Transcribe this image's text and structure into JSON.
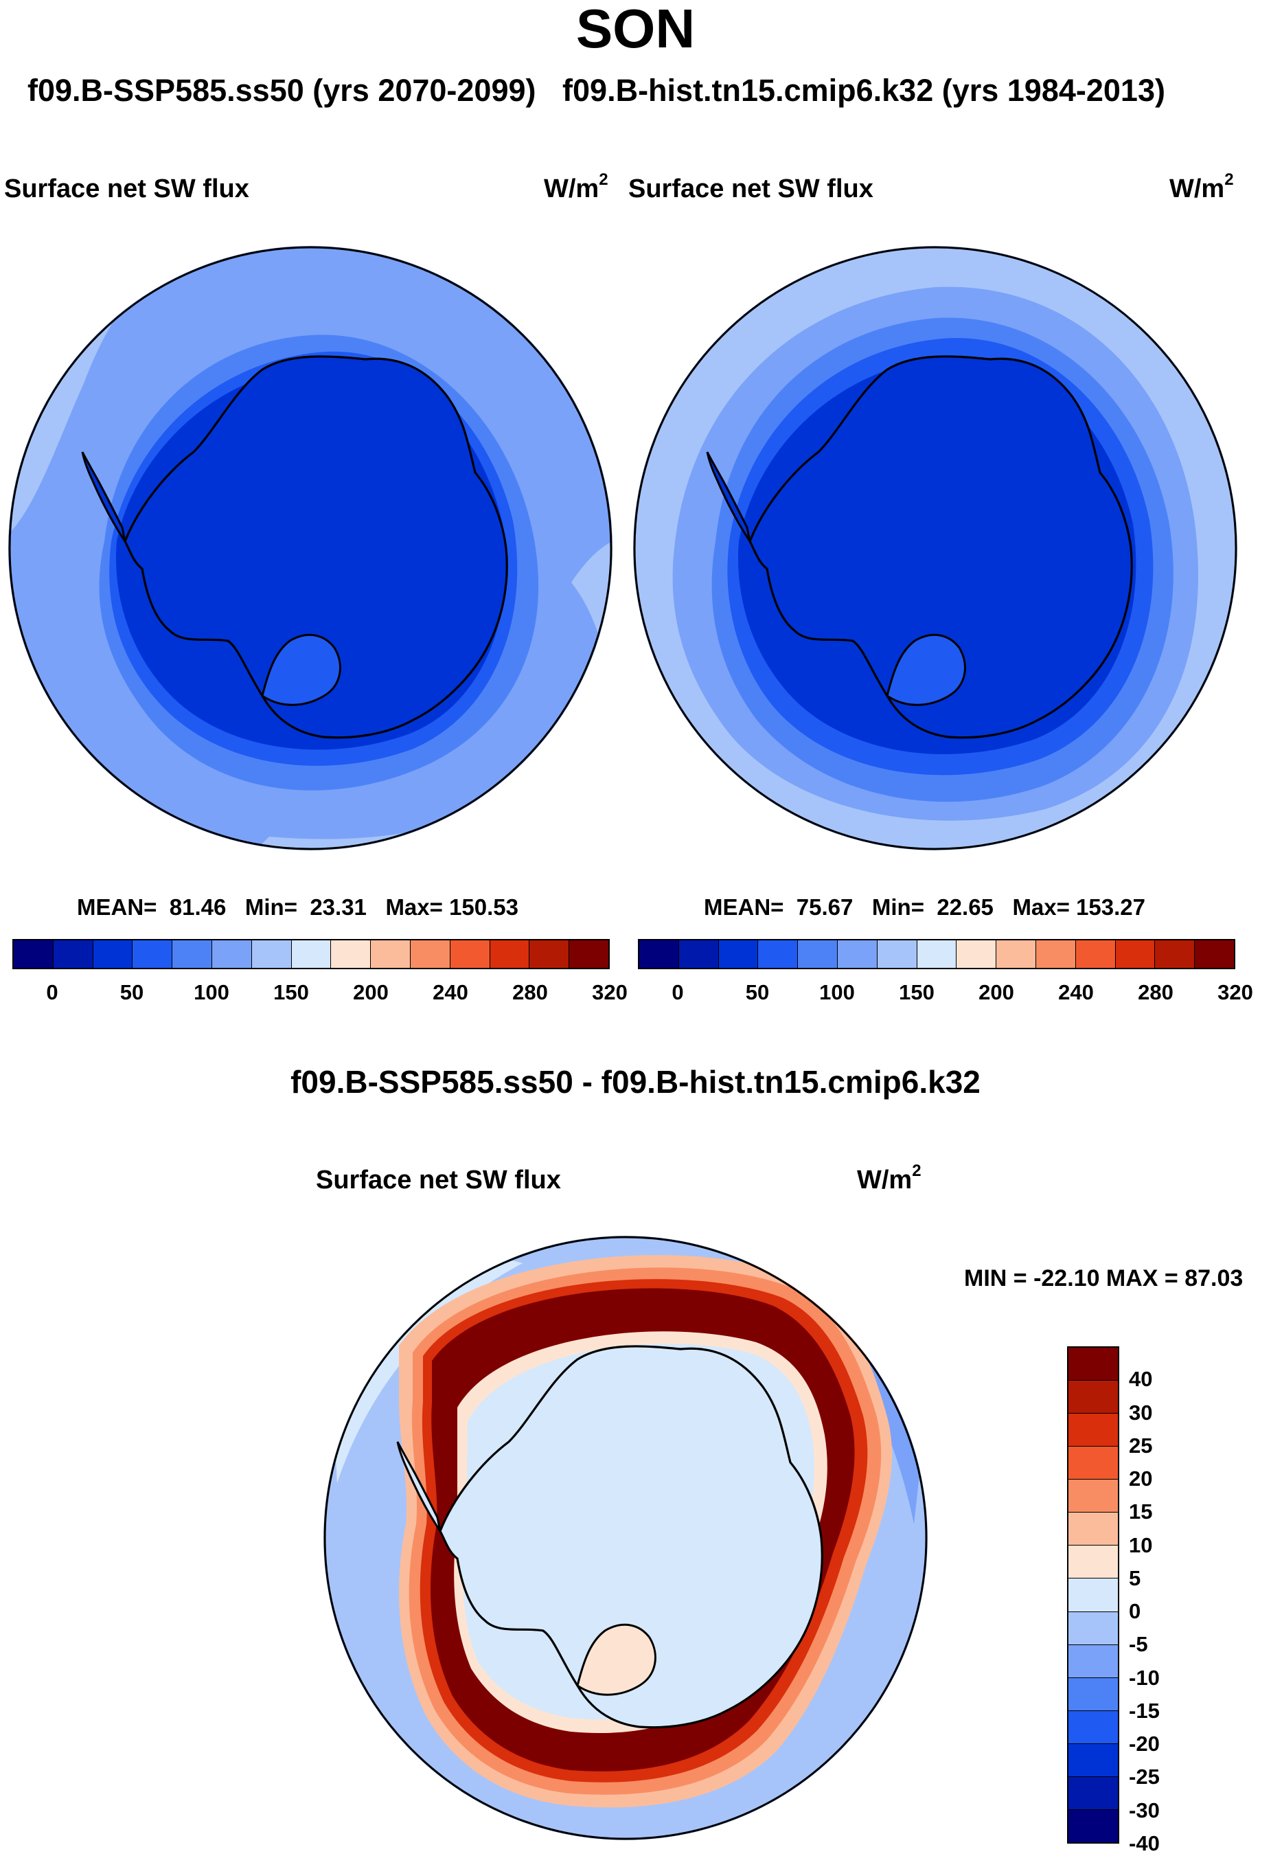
{
  "season": "SON",
  "subtitle": {
    "left": "f09.B-SSP585.ss50 (yrs 2070-2099)",
    "right": "f09.B-hist.tn15.cmip6.k32 (yrs 1984-2013)"
  },
  "panels": [
    {
      "variable": "Surface net SW flux",
      "units_base": "W/m",
      "units_exp": "2",
      "stats": {
        "mean": "81.46",
        "min": "23.31",
        "max": "150.53"
      }
    },
    {
      "variable": "Surface net SW flux",
      "units_base": "W/m",
      "units_exp": "2",
      "stats": {
        "mean": "75.67",
        "min": "22.65",
        "max": "153.27"
      }
    }
  ],
  "stat_labels": {
    "mean": "MEAN=",
    "min": "Min=",
    "max": "Max="
  },
  "abs_colorbar": {
    "colors": [
      "#00007d",
      "#0019ad",
      "#0033d6",
      "#1f5af2",
      "#4d82f7",
      "#7aa2f8",
      "#a6c4fa",
      "#d6e8fb",
      "#fde4d2",
      "#fbbc9c",
      "#f88d63",
      "#f2592e",
      "#d92f0c",
      "#b21a03",
      "#7d0000"
    ],
    "tick_labels": [
      "0",
      "50",
      "100",
      "150",
      "200",
      "240",
      "280",
      "320"
    ]
  },
  "difference": {
    "title": "f09.B-SSP585.ss50 - f09.B-hist.tn15.cmip6.k32",
    "variable": "Surface net SW flux",
    "units_base": "W/m",
    "units_exp": "2",
    "minmax_text": "MIN = -22.10 MAX =  87.03",
    "colorbar": {
      "colors_top_to_bottom": [
        "#7d0000",
        "#b21a03",
        "#d92f0c",
        "#f2592e",
        "#f88d63",
        "#fbbc9c",
        "#fde4d2",
        "#d6e8fb",
        "#a6c4fa",
        "#7aa2f8",
        "#4d82f7",
        "#1f5af2",
        "#0033d6",
        "#0019ad",
        "#00007d"
      ],
      "tick_labels_top_to_bottom": [
        "40",
        "30",
        "25",
        "20",
        "15",
        "10",
        "5",
        "0",
        "-5",
        "-10",
        "-15",
        "-20",
        "-25",
        "-30",
        "-40"
      ]
    }
  }
}
